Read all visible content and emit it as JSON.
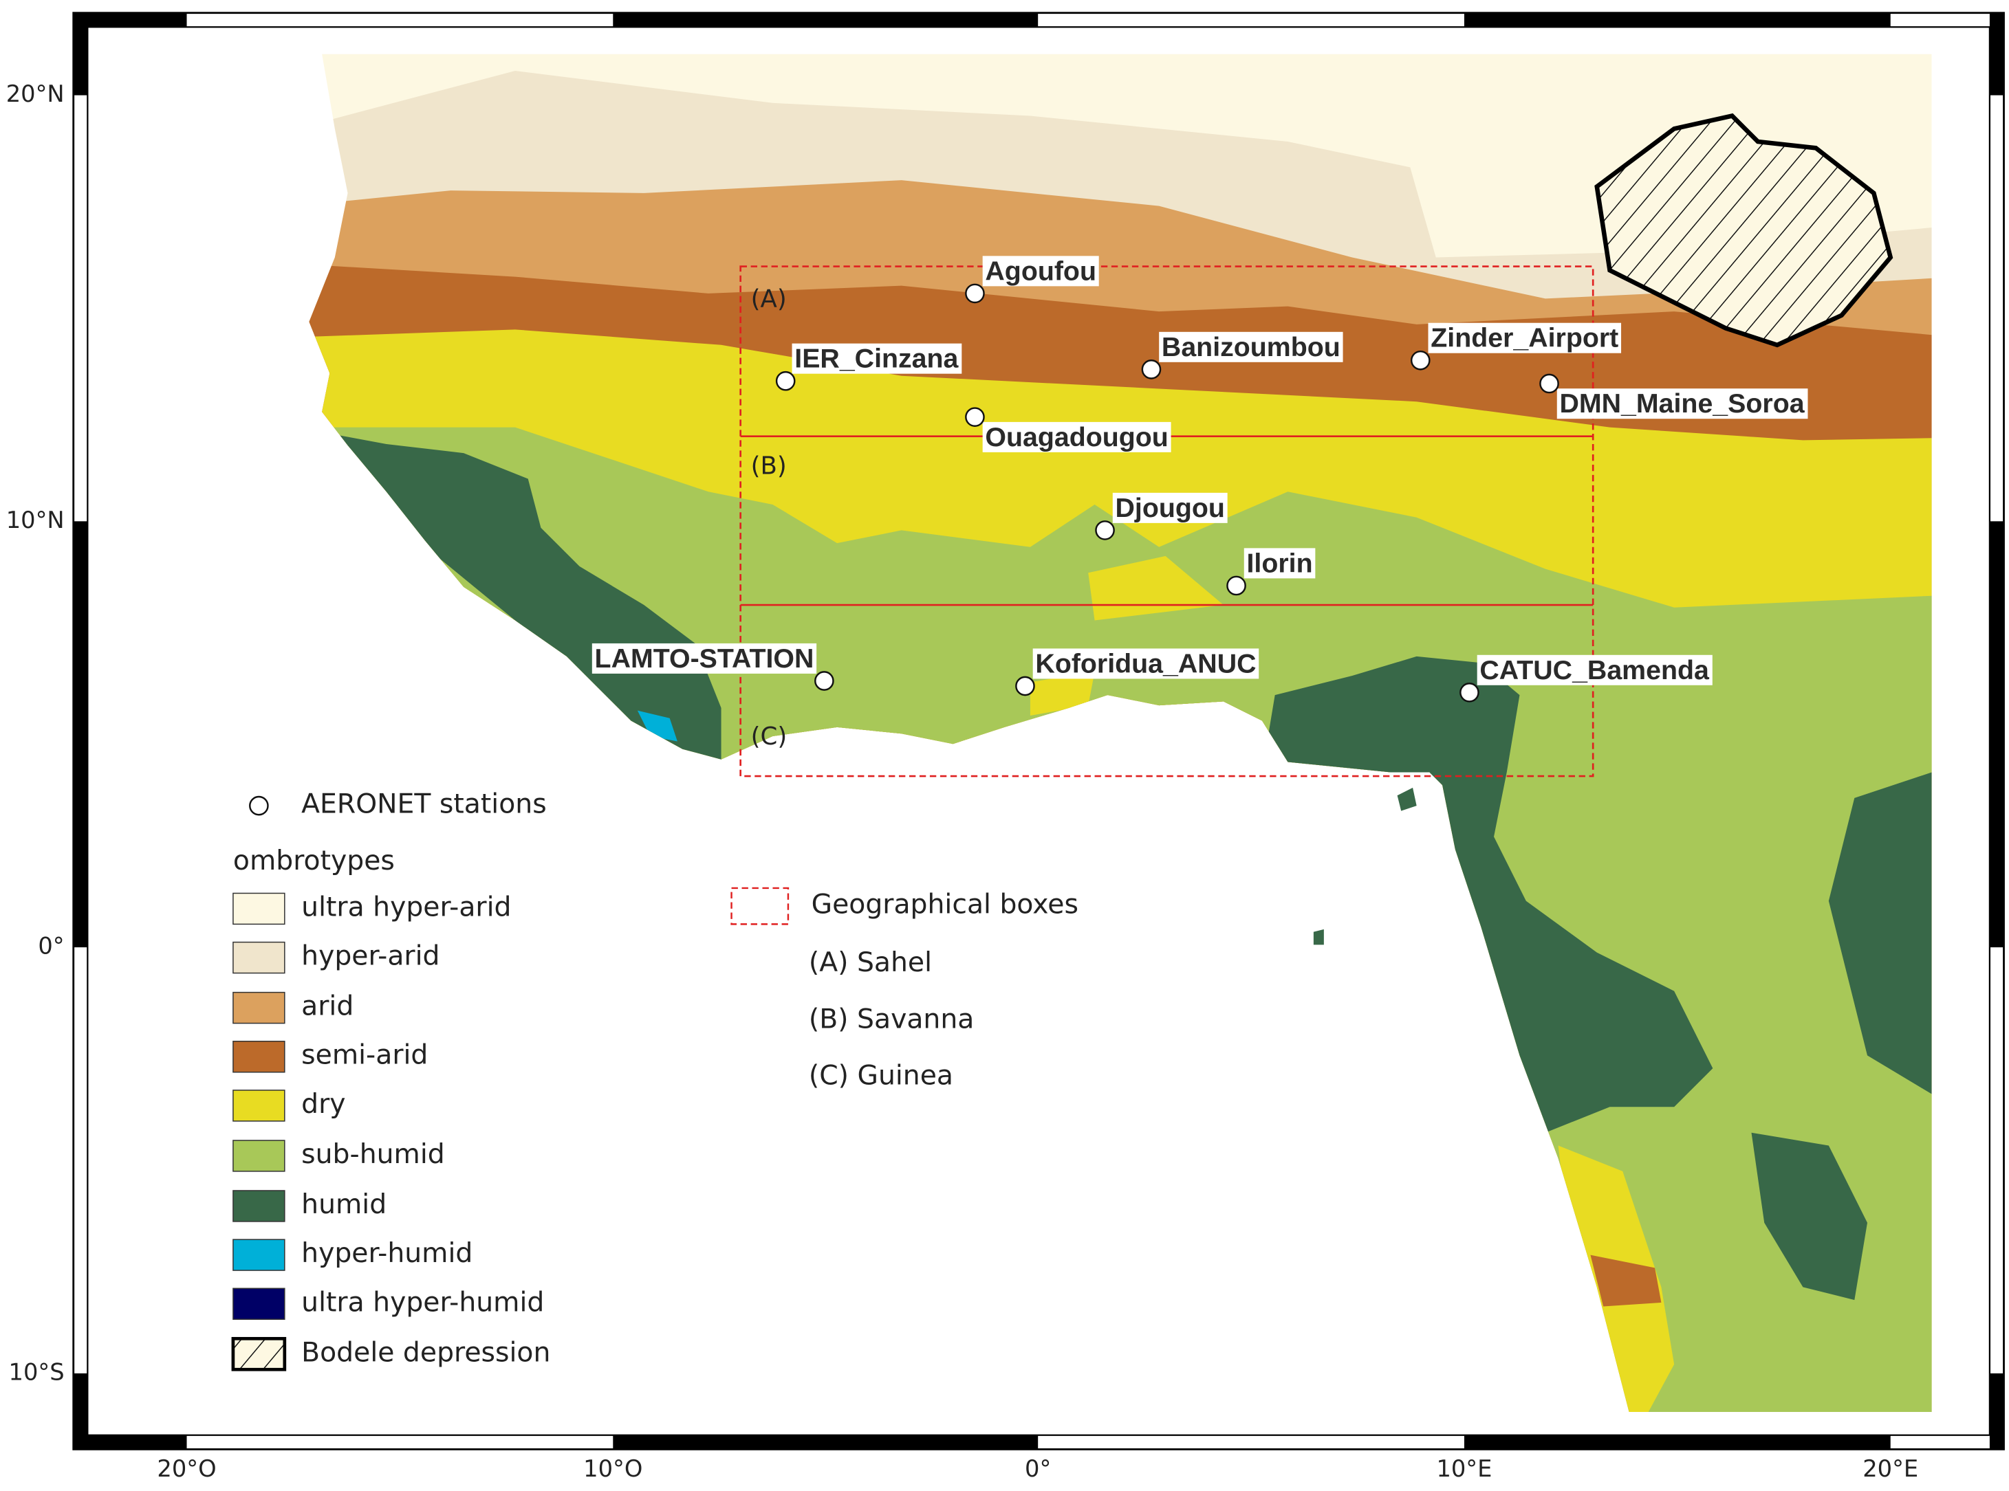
{
  "axes": {
    "x_labels": [
      "20°O",
      "10°O",
      "0°",
      "10°E",
      "20°E"
    ],
    "y_labels": [
      "20°N",
      "10°N",
      "0°",
      "10°S"
    ]
  },
  "stations": {
    "legend": "AERONET stations",
    "names": [
      "Agoufou",
      "IER_Cinzana",
      "Banizoumbou",
      "Zinder_Airport",
      "DMN_Maine_Soroa",
      "Ouagadougou",
      "Djougou",
      "Ilorin",
      "LAMTO-STATION",
      "Koforidua_ANUC",
      "CATUC_Bamenda"
    ]
  },
  "ombrotypes": {
    "title": "ombrotypes",
    "items": [
      {
        "label": "ultra hyper-arid",
        "color": "#fdf8e2"
      },
      {
        "label": "hyper-arid",
        "color": "#f0e5cc"
      },
      {
        "label": "arid",
        "color": "#dca15e"
      },
      {
        "label": "semi-arid",
        "color": "#bc6a2a"
      },
      {
        "label": "dry",
        "color": "#e8dc22"
      },
      {
        "label": "sub-humid",
        "color": "#a8c858"
      },
      {
        "label": "humid",
        "color": "#386848"
      },
      {
        "label": "hyper-humid",
        "color": "#00b0d8"
      },
      {
        "label": "ultra hyper-humid",
        "color": "#000066"
      }
    ]
  },
  "bodele": "Bodele depression",
  "boxes": {
    "legend": "Geographical boxes",
    "map_labels": [
      "(A)",
      "(B)",
      "(C)"
    ],
    "items": [
      "(A) Sahel",
      "(B) Savanna",
      "(C) Guinea"
    ]
  }
}
